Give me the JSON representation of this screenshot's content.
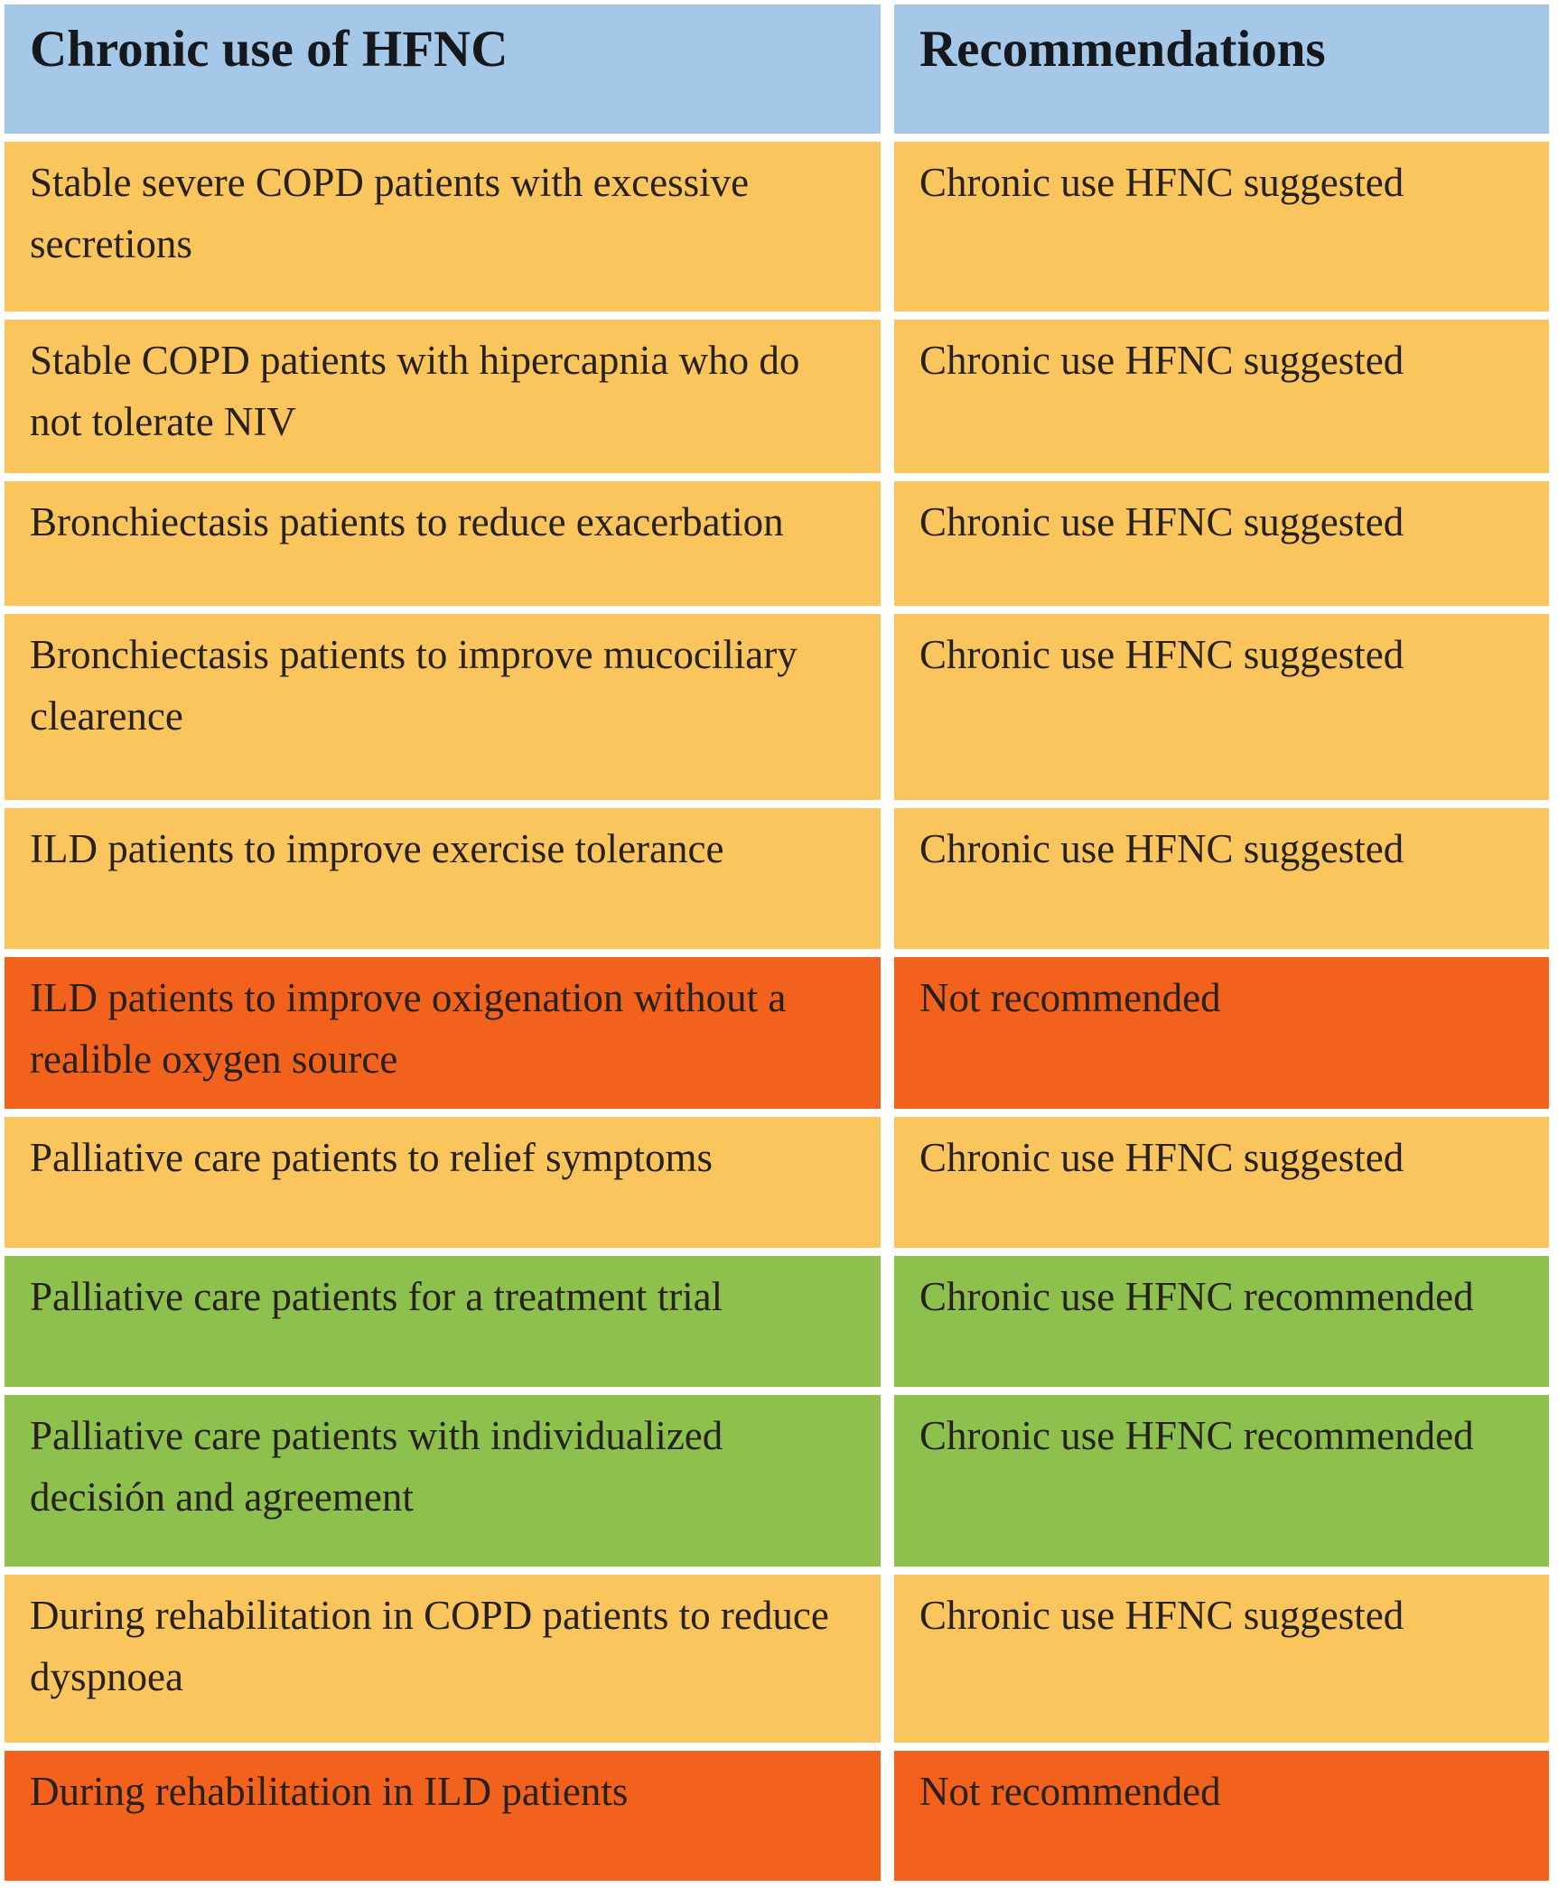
{
  "table": {
    "header": {
      "indication_label": "Chronic use of HFNC",
      "recommendation_label": "Recommendations"
    },
    "rows": [
      {
        "indication": "Stable severe COPD patients with excessive secretions",
        "recommendation": "Chronic use HFNC suggested",
        "status": "suggested"
      },
      {
        "indication": "Stable COPD patients with hipercapnia who do not tolerate NIV",
        "recommendation": "Chronic use HFNC suggested",
        "status": "suggested"
      },
      {
        "indication": "Bronchiectasis patients to reduce exacerbation",
        "recommendation": "Chronic use HFNC suggested",
        "status": "suggested"
      },
      {
        "indication": "Bronchiectasis patients  to improve mucociliary clearence",
        "recommendation": "Chronic use HFNC suggested",
        "status": "suggested"
      },
      {
        "indication": "ILD patients to improve exercise tolerance",
        "recommendation": "Chronic use HFNC suggested",
        "status": "suggested"
      },
      {
        "indication": "ILD patients to improve oxigenation without a realible oxygen source",
        "recommendation": "Not recommended",
        "status": "not_recommended"
      },
      {
        "indication": "Palliative care patients to relief symptoms",
        "recommendation": "Chronic use HFNC suggested",
        "status": "suggested"
      },
      {
        "indication": "Palliative care patients for a treatment trial",
        "recommendation": "Chronic use HFNC recommended",
        "status": "recommended"
      },
      {
        "indication": "Palliative care patients with individualized decisión and agreement",
        "recommendation": "Chronic use HFNC recommended",
        "status": "recommended"
      },
      {
        "indication": "During rehabilitation in COPD patients to reduce dyspnoea",
        "recommendation": "Chronic use HFNC suggested",
        "status": "suggested"
      },
      {
        "indication": "During rehabilitation in ILD patients",
        "recommendation": "Not recommended",
        "status": "not_recommended"
      }
    ]
  },
  "colors": {
    "header_bg": "#a6c8e8",
    "suggested": "#fbc55d",
    "not_recommended": "#f2621d",
    "recommended": "#8dc04d",
    "gutter": "#ffffff"
  }
}
